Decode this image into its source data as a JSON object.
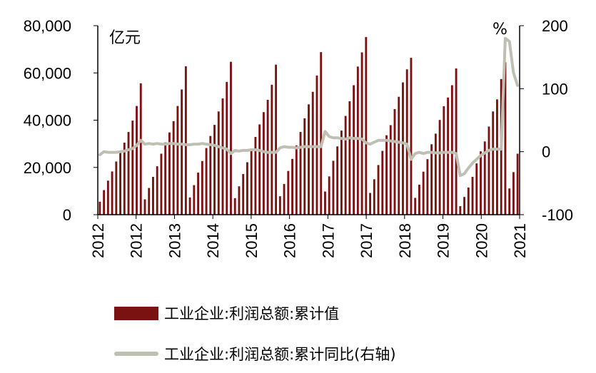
{
  "chart_data": {
    "type": "bar+line",
    "left_unit": "亿元",
    "right_unit": "%",
    "left_axis": {
      "ticks": [
        "80,000",
        "60,000",
        "40,000",
        "20,000",
        "0"
      ],
      "range": [
        0,
        80000
      ]
    },
    "right_axis": {
      "ticks": [
        "200",
        "100",
        "0",
        "-100"
      ],
      "range": [
        -100,
        200
      ]
    },
    "x_ticks": [
      "2012",
      "2012",
      "2013",
      "2014",
      "2015",
      "2016",
      "2017",
      "2017",
      "2018",
      "2019",
      "2020",
      "2021"
    ],
    "grid": false,
    "legend_position": "bottom",
    "bar_color": "#7B1212",
    "line_color": "#BFBFB4",
    "series": [
      {
        "name": "工业企业:利润总额:累计值",
        "type": "bar",
        "axis": "left",
        "values": [
          5500,
          10400,
          14400,
          18300,
          22500,
          26600,
          30500,
          35000,
          39800,
          46000,
          55600,
          6500,
          11300,
          16000,
          20500,
          25800,
          30600,
          34800,
          39600,
          46000,
          53000,
          62800,
          7300,
          12500,
          17800,
          22700,
          28200,
          33300,
          38000,
          43700,
          49200,
          56200,
          64700,
          7000,
          12000,
          17200,
          22200,
          28000,
          32900,
          38200,
          43400,
          48600,
          55000,
          63500,
          7800,
          13000,
          18500,
          23600,
          29300,
          35000,
          40800,
          46700,
          52000,
          58900,
          68800,
          9800,
          16200,
          22800,
          28900,
          35600,
          41800,
          48000,
          54800,
          62700,
          68700,
          75200,
          9200,
          15000,
          21000,
          27000,
          33600,
          37900,
          44700,
          49900,
          56000,
          61500,
          66400,
          7100,
          12700,
          18200,
          23500,
          29800,
          34300,
          40100,
          45900,
          49600,
          54800,
          61900,
          3600,
          7500,
          11500,
          16000,
          21700,
          26800,
          31000,
          37300,
          43700,
          48800,
          57400,
          64500,
          11100,
          18000,
          25800
        ]
      },
      {
        "name": "工业企业:利润总额:累计同比(右轴)",
        "type": "line",
        "axis": "right",
        "values": [
          -5,
          0,
          -1,
          -1,
          -1,
          0,
          1,
          3,
          5,
          10,
          18,
          12,
          13,
          12,
          13,
          12,
          12,
          13,
          13,
          12,
          12,
          11,
          11,
          12,
          12,
          13,
          12,
          11,
          10,
          8,
          6,
          4,
          -3,
          2,
          1,
          2,
          2,
          3,
          3,
          2,
          0,
          -1,
          -1,
          -1,
          6,
          8,
          7,
          7,
          6,
          7,
          8,
          8,
          8,
          8,
          8,
          32,
          24,
          22,
          22,
          21,
          20,
          22,
          21,
          21,
          20,
          14,
          12,
          15,
          18,
          18,
          18,
          17,
          16,
          15,
          14,
          12,
          -12,
          -3,
          -1,
          -3,
          -1,
          -1,
          -2,
          -2,
          -1,
          -1,
          -1,
          -3,
          -38,
          -35,
          -26,
          -18,
          -12,
          -6,
          -2,
          2,
          4,
          4,
          4,
          180,
          175,
          125,
          105
        ]
      }
    ]
  }
}
